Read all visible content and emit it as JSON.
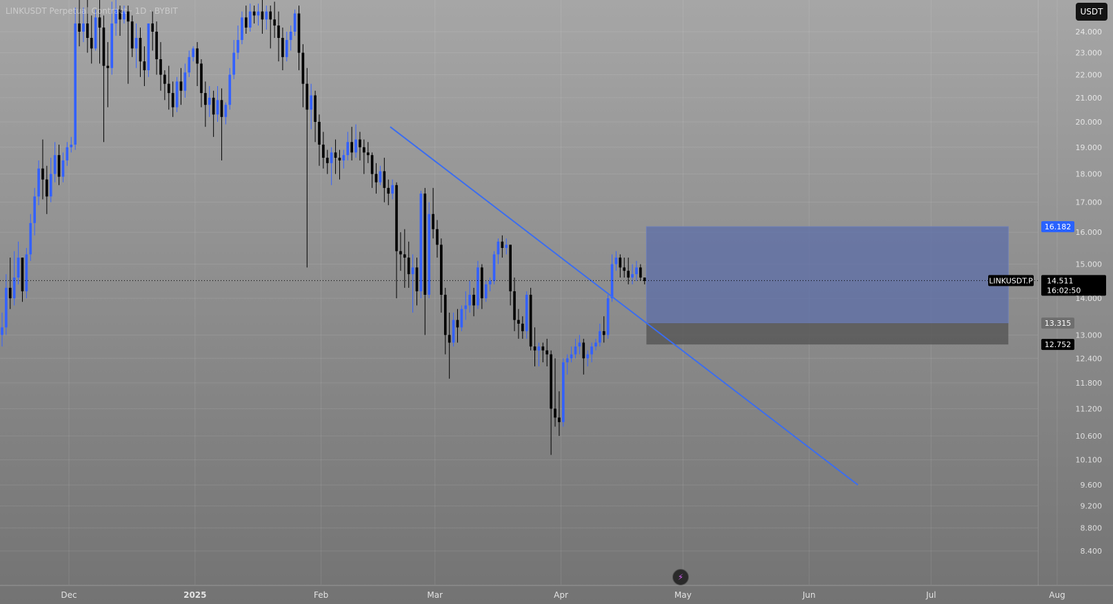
{
  "title": "LINKUSDT Perpetual Contract · 1D · BYBIT",
  "currency_button": "USDT",
  "bolt_icon": "lightning-icon",
  "colors": {
    "up": "#3361ff",
    "down": "#000000",
    "trendline": "#3b6df0",
    "zone_upper": "#5c6ea8",
    "zone_lower": "#555555",
    "current_price_label": "#000000",
    "zone_top_label": "#2962ff"
  },
  "chart_data": {
    "type": "candlestick",
    "x_axis": {
      "labels": [
        {
          "text": "Dec",
          "date": "2024-12-01"
        },
        {
          "text": "2025",
          "date": "2025-01-01"
        },
        {
          "text": "Feb",
          "date": "2025-02-01"
        },
        {
          "text": "Mar",
          "date": "2025-03-01"
        },
        {
          "text": "Apr",
          "date": "2025-04-01"
        },
        {
          "text": "May",
          "date": "2025-05-01"
        },
        {
          "text": "Jun",
          "date": "2025-06-01"
        },
        {
          "text": "Jul",
          "date": "2025-07-01"
        },
        {
          "text": "Aug",
          "date": "2025-08-01"
        }
      ]
    },
    "y_axis": {
      "scale": "log",
      "ticks": [
        "24.000",
        "23.000",
        "22.000",
        "21.000",
        "20.000",
        "19.000",
        "18.000",
        "17.000",
        "16.000",
        "15.000",
        "14.000",
        "13.000",
        "12.400",
        "11.800",
        "11.200",
        "10.600",
        "10.100",
        "9.600",
        "9.200",
        "8.800",
        "8.400"
      ]
    },
    "candles": [
      [
        13.0,
        13.6,
        13.2,
        12.7
      ],
      [
        13.2,
        14.7,
        14.3,
        13.0
      ],
      [
        14.3,
        15.2,
        14.0,
        13.7
      ],
      [
        14.0,
        15.4,
        14.6,
        13.8
      ],
      [
        14.6,
        15.7,
        15.2,
        14.4
      ],
      [
        15.2,
        15.0,
        14.2,
        13.9
      ],
      [
        14.2,
        15.5,
        15.3,
        14.0
      ],
      [
        15.3,
        16.6,
        16.3,
        15.1
      ],
      [
        16.3,
        17.5,
        17.2,
        15.9
      ],
      [
        17.2,
        18.5,
        18.2,
        16.9
      ],
      [
        18.2,
        19.3,
        17.8,
        17.1
      ],
      [
        17.8,
        18.3,
        17.2,
        16.6
      ],
      [
        17.2,
        18.6,
        18.0,
        17.0
      ],
      [
        18.0,
        19.2,
        18.7,
        17.7
      ],
      [
        18.7,
        19.1,
        17.9,
        17.6
      ],
      [
        17.9,
        18.8,
        18.5,
        17.7
      ],
      [
        18.5,
        19.2,
        19.0,
        18.3
      ],
      [
        19.0,
        19.4,
        19.1,
        18.8
      ],
      [
        19.1,
        25.2,
        24.4,
        18.9
      ],
      [
        24.4,
        25.8,
        24.0,
        23.3
      ],
      [
        24.0,
        25.2,
        24.4,
        23.5
      ],
      [
        24.4,
        25.6,
        23.7,
        23.0
      ],
      [
        23.7,
        24.8,
        23.2,
        22.5
      ],
      [
        23.2,
        25.1,
        24.7,
        23.1
      ],
      [
        24.7,
        25.6,
        24.2,
        22.5
      ],
      [
        24.2,
        24.8,
        22.4,
        19.2
      ],
      [
        22.4,
        23.5,
        22.3,
        20.6
      ],
      [
        22.3,
        25.5,
        24.4,
        22.0
      ],
      [
        24.4,
        25.6,
        25.1,
        23.8
      ],
      [
        25.1,
        25.3,
        24.6,
        23.8
      ],
      [
        24.6,
        25.3,
        25.0,
        24.4
      ],
      [
        25.0,
        25.3,
        24.5,
        21.6
      ],
      [
        24.5,
        24.8,
        23.2,
        22.8
      ],
      [
        23.2,
        24.4,
        23.7,
        22.3
      ],
      [
        23.7,
        24.2,
        22.6,
        21.9
      ],
      [
        22.6,
        23.3,
        22.2,
        21.5
      ],
      [
        22.2,
        24.0,
        24.4,
        21.9
      ],
      [
        24.4,
        25.0,
        24.0,
        23.1
      ],
      [
        24.0,
        24.5,
        22.7,
        22.0
      ],
      [
        22.7,
        23.5,
        22.0,
        21.3
      ],
      [
        22.0,
        22.2,
        21.6,
        20.9
      ],
      [
        21.6,
        22.4,
        21.2,
        20.5
      ],
      [
        21.2,
        21.7,
        20.6,
        20.2
      ],
      [
        20.6,
        21.9,
        21.7,
        20.4
      ],
      [
        21.7,
        22.3,
        21.3,
        20.7
      ],
      [
        21.3,
        22.5,
        22.1,
        21.0
      ],
      [
        22.1,
        23.1,
        22.8,
        21.9
      ],
      [
        22.8,
        23.3,
        23.2,
        22.6
      ],
      [
        23.2,
        23.5,
        22.5,
        21.5
      ],
      [
        22.5,
        22.7,
        21.2,
        20.6
      ],
      [
        21.2,
        21.7,
        20.7,
        19.8
      ],
      [
        20.7,
        21.5,
        21.0,
        20.2
      ],
      [
        21.0,
        21.3,
        20.3,
        19.4
      ],
      [
        20.3,
        21.5,
        20.9,
        20.0
      ],
      [
        20.9,
        21.4,
        20.2,
        18.5
      ],
      [
        20.2,
        20.8,
        20.7,
        19.9
      ],
      [
        20.7,
        22.3,
        22.0,
        20.5
      ],
      [
        22.0,
        23.6,
        23.0,
        21.8
      ],
      [
        23.0,
        24.3,
        23.6,
        22.7
      ],
      [
        23.6,
        25.0,
        24.7,
        23.4
      ],
      [
        24.7,
        25.3,
        24.2,
        23.9
      ],
      [
        24.2,
        25.4,
        25.0,
        24.0
      ],
      [
        25.0,
        25.3,
        24.8,
        24.4
      ],
      [
        24.8,
        25.4,
        25.0,
        24.3
      ],
      [
        25.0,
        25.6,
        24.6,
        23.9
      ],
      [
        24.6,
        25.3,
        25.0,
        24.1
      ],
      [
        25.0,
        25.3,
        24.6,
        23.2
      ],
      [
        24.6,
        25.5,
        24.3,
        23.7
      ],
      [
        24.3,
        25.0,
        23.7,
        22.6
      ],
      [
        23.7,
        24.2,
        22.8,
        22.2
      ],
      [
        22.8,
        24.0,
        23.6,
        22.6
      ],
      [
        23.6,
        24.3,
        24.0,
        23.1
      ],
      [
        24.0,
        25.1,
        24.9,
        23.8
      ],
      [
        24.9,
        25.3,
        23.0,
        22.2
      ],
      [
        23.0,
        23.4,
        21.6,
        20.6
      ],
      [
        21.6,
        22.3,
        20.5,
        14.9
      ],
      [
        20.5,
        21.6,
        21.1,
        19.7
      ],
      [
        21.1,
        21.3,
        20.0,
        19.2
      ],
      [
        20.0,
        20.3,
        19.1,
        18.3
      ],
      [
        19.1,
        19.6,
        18.6,
        18.2
      ],
      [
        18.6,
        18.9,
        18.4,
        18.0
      ],
      [
        18.4,
        19.0,
        18.8,
        17.6
      ],
      [
        18.8,
        19.3,
        18.6,
        18.0
      ],
      [
        18.6,
        18.9,
        18.5,
        17.8
      ],
      [
        18.5,
        18.9,
        18.7,
        18.2
      ],
      [
        18.7,
        19.6,
        19.2,
        18.5
      ],
      [
        19.2,
        19.8,
        18.8,
        18.5
      ],
      [
        18.8,
        19.9,
        19.3,
        18.6
      ],
      [
        19.3,
        19.6,
        19.0,
        18.5
      ],
      [
        19.0,
        19.3,
        18.8,
        18.0
      ],
      [
        18.8,
        19.2,
        18.7,
        18.4
      ],
      [
        18.7,
        18.8,
        18.0,
        17.5
      ],
      [
        18.0,
        18.4,
        17.7,
        17.3
      ],
      [
        17.7,
        18.3,
        18.1,
        17.6
      ],
      [
        18.1,
        18.6,
        17.5,
        17.0
      ],
      [
        17.5,
        17.8,
        17.3,
        16.9
      ],
      [
        17.3,
        17.8,
        17.6,
        17.1
      ],
      [
        17.6,
        17.7,
        15.4,
        14.0
      ],
      [
        15.4,
        16.0,
        15.3,
        14.8
      ],
      [
        15.3,
        16.1,
        15.2,
        14.3
      ],
      [
        15.2,
        15.7,
        14.7,
        14.3
      ],
      [
        14.7,
        15.3,
        14.9,
        13.6
      ],
      [
        14.9,
        15.2,
        14.2,
        13.8
      ],
      [
        14.2,
        17.4,
        17.3,
        14.0
      ],
      [
        17.3,
        17.5,
        14.1,
        13.0
      ],
      [
        14.1,
        17.0,
        16.6,
        14.0
      ],
      [
        16.6,
        17.5,
        16.1,
        15.8
      ],
      [
        16.1,
        16.4,
        15.6,
        15.2
      ],
      [
        15.6,
        15.8,
        14.1,
        13.6
      ],
      [
        14.1,
        14.3,
        13.0,
        12.5
      ],
      [
        13.0,
        13.6,
        12.8,
        11.9
      ],
      [
        12.8,
        13.6,
        13.4,
        12.7
      ],
      [
        13.4,
        13.7,
        13.2,
        12.8
      ],
      [
        13.2,
        13.8,
        13.7,
        13.1
      ],
      [
        13.7,
        14.2,
        13.8,
        13.4
      ],
      [
        13.8,
        14.5,
        14.1,
        13.6
      ],
      [
        14.1,
        14.3,
        13.8,
        13.5
      ],
      [
        13.8,
        15.1,
        14.9,
        13.7
      ],
      [
        14.9,
        15.0,
        14.0,
        13.7
      ],
      [
        14.0,
        14.5,
        14.4,
        13.9
      ],
      [
        14.4,
        14.6,
        14.5,
        14.2
      ],
      [
        14.5,
        15.4,
        15.3,
        14.4
      ],
      [
        15.3,
        15.8,
        15.7,
        15.0
      ],
      [
        15.7,
        15.9,
        15.5,
        15.2
      ],
      [
        15.5,
        15.8,
        15.6,
        15.3
      ],
      [
        15.6,
        15.6,
        14.2,
        13.8
      ],
      [
        14.2,
        14.6,
        13.4,
        13.1
      ],
      [
        13.4,
        13.7,
        13.3,
        12.9
      ],
      [
        13.3,
        13.5,
        13.1,
        12.9
      ],
      [
        13.1,
        14.2,
        14.1,
        12.9
      ],
      [
        14.1,
        14.3,
        12.7,
        12.6
      ],
      [
        12.7,
        13.2,
        12.6,
        12.2
      ],
      [
        12.6,
        12.8,
        12.7,
        12.2
      ],
      [
        12.7,
        12.8,
        12.6,
        12.3
      ],
      [
        12.6,
        12.9,
        12.5,
        12.2
      ],
      [
        12.5,
        12.6,
        11.2,
        10.2
      ],
      [
        11.2,
        12.4,
        11.0,
        10.8
      ],
      [
        11.0,
        11.6,
        10.9,
        10.6
      ],
      [
        10.9,
        12.4,
        12.3,
        10.8
      ],
      [
        12.3,
        12.5,
        12.4,
        12.0
      ],
      [
        12.4,
        12.7,
        12.5,
        12.3
      ],
      [
        12.5,
        12.9,
        12.7,
        12.4
      ],
      [
        12.7,
        13.0,
        12.8,
        12.5
      ],
      [
        12.8,
        12.9,
        12.4,
        12.0
      ],
      [
        12.4,
        12.6,
        12.5,
        12.2
      ],
      [
        12.5,
        12.8,
        12.7,
        12.3
      ],
      [
        12.7,
        12.9,
        12.8,
        12.6
      ],
      [
        12.8,
        13.3,
        13.1,
        12.7
      ],
      [
        13.1,
        13.5,
        13.0,
        12.8
      ],
      [
        13.0,
        14.1,
        14.0,
        12.9
      ],
      [
        14.0,
        15.3,
        15.0,
        13.9
      ],
      [
        15.0,
        15.4,
        15.2,
        14.8
      ],
      [
        15.2,
        15.3,
        14.9,
        14.6
      ],
      [
        14.9,
        15.2,
        14.8,
        14.6
      ],
      [
        14.8,
        15.2,
        14.6,
        14.4
      ],
      [
        14.6,
        15.0,
        14.7,
        14.4
      ],
      [
        14.7,
        15.1,
        14.9,
        14.5
      ],
      [
        14.9,
        15.0,
        14.6,
        14.5
      ],
      [
        14.6,
        14.6,
        14.5,
        14.4
      ]
    ],
    "trendline": {
      "start": {
        "date": "2025-02-18",
        "price": 19.8
      },
      "end": {
        "date": "2025-06-13",
        "price": 9.6
      }
    },
    "zones": [
      {
        "from": "2025-04-22",
        "to": "2025-07-20",
        "top": 16.182,
        "bottom": 13.315,
        "label": "upper"
      },
      {
        "from": "2025-04-22",
        "to": "2025-07-20",
        "top": 13.315,
        "bottom": 12.752,
        "label": "lower"
      }
    ],
    "current_price": {
      "symbol": "LINKUSDT.P",
      "price": "14.511",
      "countdown": "16:02:50",
      "value": 14.511
    },
    "price_labels": [
      {
        "text": "16.182",
        "value": 16.182,
        "style": "blue"
      },
      {
        "text": "13.315",
        "value": 13.315,
        "style": "grey"
      },
      {
        "text": "12.752",
        "value": 12.752,
        "style": "dark"
      }
    ]
  }
}
